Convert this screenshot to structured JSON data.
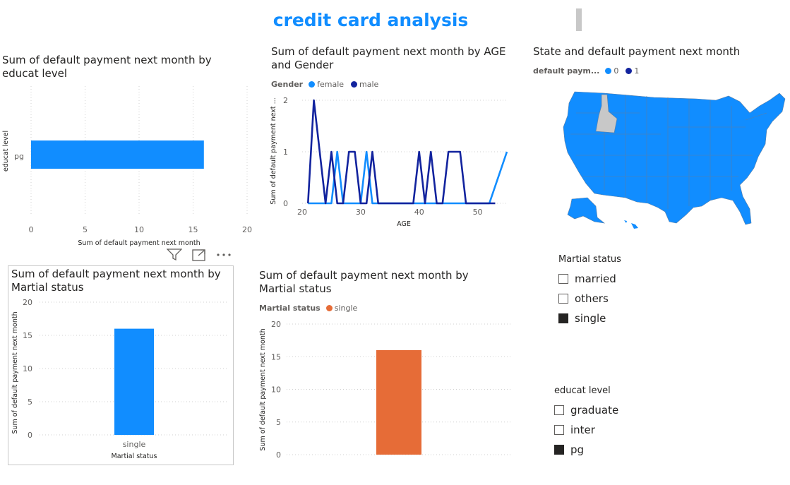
{
  "report": {
    "title": "credit card analysis"
  },
  "colors": {
    "blue": "#118DFF",
    "navy": "#12239E",
    "orange": "#E66C37",
    "grey_state": "#C8C8C8",
    "text": "#252423",
    "muted": "#605e5c"
  },
  "visuals": {
    "educ_bar": {
      "title": "Sum of default payment next month by educat level"
    },
    "age_line": {
      "title": "Sum of default payment next month by AGE and Gender",
      "legend_label": "Gender",
      "legend_items": [
        "female",
        "male"
      ]
    },
    "state_map": {
      "title": "State and default payment next month",
      "legend_label": "default paym...",
      "legend_items": [
        "0",
        "1"
      ]
    },
    "martial_bar_1": {
      "title": "Sum of default payment next month by Martial status"
    },
    "martial_bar_2": {
      "title": "Sum of default payment next month by Martial status",
      "legend_label": "Martial status",
      "legend_items": [
        "single"
      ]
    }
  },
  "slicers": {
    "martial": {
      "title": "Martial status",
      "items": [
        {
          "label": "married",
          "checked": false
        },
        {
          "label": "others",
          "checked": false
        },
        {
          "label": "single",
          "checked": true
        }
      ]
    },
    "educat": {
      "title": "educat level",
      "items": [
        {
          "label": "graduate",
          "checked": false
        },
        {
          "label": "inter",
          "checked": false
        },
        {
          "label": "pg",
          "checked": true
        }
      ]
    }
  },
  "header_icons": [
    "filter-icon",
    "focus-mode-icon",
    "more-options-icon"
  ],
  "chart_data": [
    {
      "type": "bar",
      "orientation": "horizontal",
      "title": "Sum of default payment next month by educat level",
      "categories": [
        "pg"
      ],
      "values": [
        16
      ],
      "xlabel": "Sum of default payment next month",
      "ylabel": "educat level",
      "xlim": [
        0,
        20
      ],
      "xticks": [
        "0",
        "5",
        "10",
        "15",
        "20"
      ],
      "grid": true
    },
    {
      "type": "line",
      "title": "Sum of default payment next month by AGE and Gender",
      "xlabel": "AGE",
      "ylabel": "Sum of default payment next ...",
      "xlim": [
        20,
        55
      ],
      "ylim": [
        0,
        2
      ],
      "xticks": [
        "20",
        "30",
        "40",
        "50"
      ],
      "yticks": [
        "0",
        "1",
        "2"
      ],
      "legend": "top-left",
      "series": [
        {
          "name": "female",
          "color": "#118DFF",
          "x": [
            21,
            22,
            23,
            24,
            25,
            26,
            27,
            28,
            29,
            30,
            31,
            32,
            33,
            34,
            35,
            36,
            37,
            38,
            39,
            40,
            41,
            42,
            43,
            44,
            45,
            46,
            47,
            48,
            49,
            50,
            51,
            52,
            55
          ],
          "y": [
            0,
            0,
            0,
            0,
            0,
            1,
            0,
            0,
            0,
            0,
            1,
            0,
            0,
            0,
            0,
            0,
            0,
            0,
            0,
            0,
            0,
            0,
            0,
            0,
            0,
            0,
            0,
            0,
            0,
            0,
            0,
            0,
            1
          ]
        },
        {
          "name": "male",
          "color": "#12239E",
          "x": [
            21,
            22,
            23,
            24,
            25,
            26,
            27,
            28,
            29,
            30,
            31,
            32,
            33,
            34,
            35,
            36,
            37,
            38,
            39,
            40,
            41,
            42,
            43,
            44,
            45,
            46,
            47,
            48,
            49,
            50,
            51,
            52,
            53
          ],
          "y": [
            0,
            2,
            1,
            0,
            1,
            0,
            0,
            1,
            1,
            0,
            0,
            1,
            0,
            0,
            0,
            0,
            0,
            0,
            0,
            1,
            0,
            1,
            0,
            0,
            1,
            1,
            1,
            0,
            0,
            0,
            0,
            0,
            0
          ]
        }
      ]
    },
    {
      "type": "bar",
      "title": "Sum of default payment next month by Martial status",
      "categories": [
        "single"
      ],
      "values": [
        16
      ],
      "xlabel": "Martial status",
      "ylabel": "Sum of default payment next month",
      "ylim": [
        0,
        20
      ],
      "yticks": [
        "0",
        "5",
        "10",
        "15",
        "20"
      ],
      "color": "#118DFF",
      "grid": true
    },
    {
      "type": "bar",
      "title": "Sum of default payment next month by Martial status",
      "categories": [
        "single"
      ],
      "values": [
        16
      ],
      "ylabel": "Sum of default payment next month",
      "ylim": [
        0,
        20
      ],
      "yticks": [
        "0",
        "5",
        "10",
        "15",
        "20"
      ],
      "color": "#E66C37",
      "legend": "top-left",
      "grid": true
    }
  ]
}
